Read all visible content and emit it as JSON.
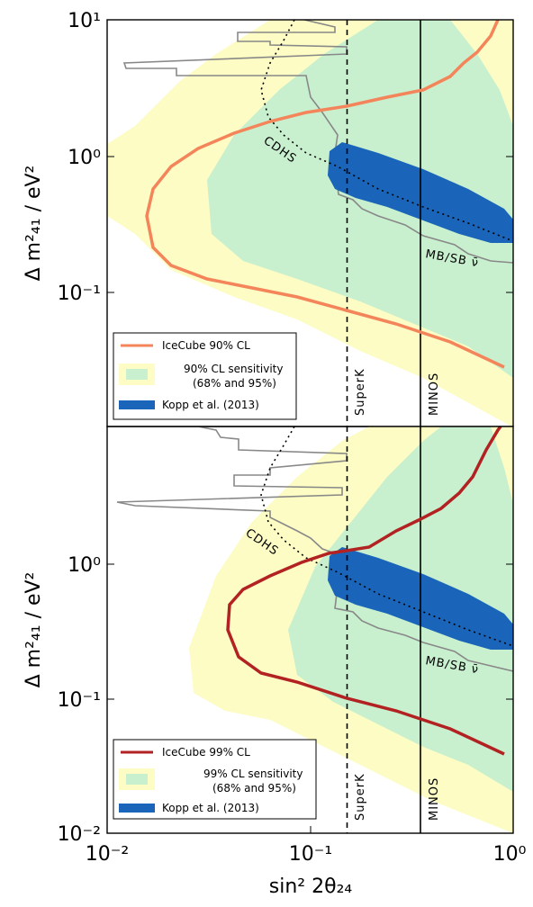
{
  "chart_data": [
    {
      "type": "line",
      "panel": "top",
      "xlabel": "sin² 2θ₂₄",
      "ylabel": "Δ m²₄₁ / eV²",
      "xscale": "log",
      "yscale": "log",
      "xlim": [
        0.01,
        1
      ],
      "ylim": [
        0.01,
        10
      ],
      "y_tick_labels": [
        "10⁻¹",
        "10⁰",
        "10¹"
      ],
      "legend": {
        "placement": "lower-left",
        "entries": [
          {
            "label": "IceCube 90% CL",
            "color": "#f4845a"
          },
          {
            "label": "90% CL sensitivity",
            "sub": "(68% and 95%)",
            "colors": [
              "#c8f0cf",
              "#fcfcc4"
            ]
          },
          {
            "label": "Kopp et al. (2013)",
            "color": "#1a65b9"
          }
        ]
      },
      "annotations": [
        "CDHS",
        "SuperK",
        "MINOS",
        "MB/SB ν̄"
      ],
      "series": [
        {
          "name": "IceCube 90% CL",
          "color": "#f4845a",
          "points": [
            [
              0.9,
              0.028
            ],
            [
              0.6,
              0.036
            ],
            [
              0.35,
              0.05
            ],
            [
              0.2,
              0.065
            ],
            [
              0.12,
              0.078
            ],
            [
              0.07,
              0.09
            ],
            [
              0.04,
              0.1
            ],
            [
              0.025,
              0.115
            ],
            [
              0.018,
              0.155
            ],
            [
              0.016,
              0.3
            ],
            [
              0.019,
              0.55
            ],
            [
              0.026,
              0.9
            ],
            [
              0.04,
              1.25
            ],
            [
              0.06,
              1.6
            ],
            [
              0.1,
              2.1
            ],
            [
              0.16,
              2.6
            ],
            [
              0.25,
              2.8
            ],
            [
              0.35,
              3.1
            ],
            [
              0.5,
              4.0
            ],
            [
              0.65,
              5.5
            ],
            [
              0.75,
              7.5
            ],
            [
              0.85,
              10
            ]
          ]
        },
        {
          "name": "Kopp et al. (2013)",
          "color": "#1a65b9",
          "points": [
            [
              0.14,
              1.0
            ],
            [
              0.2,
              0.75
            ],
            [
              0.3,
              0.55
            ],
            [
              0.45,
              0.42
            ],
            [
              0.65,
              0.33
            ],
            [
              0.95,
              0.27
            ]
          ]
        },
        {
          "name": "CDHS",
          "color": "#000000",
          "points": [
            [
              0.08,
              10
            ],
            [
              0.065,
              6
            ],
            [
              0.058,
              4
            ],
            [
              0.062,
              2.5
            ],
            [
              0.08,
              1.5
            ],
            [
              0.12,
              1.0
            ],
            [
              0.2,
              0.7
            ],
            [
              0.35,
              0.5
            ],
            [
              0.6,
              0.35
            ],
            [
              0.95,
              0.25
            ]
          ]
        },
        {
          "name": "MB/SB ν̄",
          "color": "#808080",
          "points": [
            [
              0.12,
              10
            ],
            [
              0.2,
              8.5
            ],
            [
              0.12,
              6.5
            ],
            [
              0.04,
              5.8
            ],
            [
              0.025,
              4.5
            ],
            [
              0.06,
              4.2
            ],
            [
              0.1,
              3.5
            ],
            [
              0.14,
              2.5
            ],
            [
              0.12,
              1.5
            ],
            [
              0.15,
              0.9
            ],
            [
              0.15,
              0.65
            ],
            [
              0.2,
              0.5
            ],
            [
              0.3,
              0.35
            ],
            [
              0.5,
              0.25
            ],
            [
              0.75,
              0.2
            ],
            [
              1.0,
              0.18
            ]
          ]
        }
      ],
      "vertical_lines": [
        {
          "name": "SuperK",
          "x": 0.15,
          "style": "dashed"
        },
        {
          "name": "MINOS",
          "x": 0.35,
          "style": "solid"
        }
      ]
    },
    {
      "type": "line",
      "panel": "bottom",
      "xlabel": "sin² 2θ₂₄",
      "ylabel": "Δ m²₄₁ / eV²",
      "xscale": "log",
      "yscale": "log",
      "xlim": [
        0.01,
        1
      ],
      "ylim": [
        0.01,
        10
      ],
      "x_tick_labels": [
        "10⁻²",
        "10⁻¹",
        "10⁰"
      ],
      "y_tick_labels": [
        "10⁻²",
        "10⁻¹",
        "10⁰"
      ],
      "legend": {
        "placement": "lower-left",
        "entries": [
          {
            "label": "IceCube 99% CL",
            "color": "#b22222"
          },
          {
            "label": "99% CL sensitivity",
            "sub": "(68% and 95%)",
            "colors": [
              "#c8f0cf",
              "#fcfcc4"
            ]
          },
          {
            "label": "Kopp et al. (2013)",
            "color": "#1a65b9"
          }
        ]
      },
      "annotations": [
        "CDHS",
        "SuperK",
        "MINOS",
        "MB/SB ν̄"
      ],
      "series": [
        {
          "name": "IceCube 99% CL",
          "color": "#b22222",
          "points": [
            [
              0.9,
              0.038
            ],
            [
              0.6,
              0.05
            ],
            [
              0.35,
              0.068
            ],
            [
              0.2,
              0.085
            ],
            [
              0.12,
              0.1
            ],
            [
              0.08,
              0.12
            ],
            [
              0.055,
              0.15
            ],
            [
              0.042,
              0.2
            ],
            [
              0.04,
              0.32
            ],
            [
              0.05,
              0.5
            ],
            [
              0.07,
              0.7
            ],
            [
              0.1,
              0.9
            ],
            [
              0.13,
              1.1
            ],
            [
              0.2,
              1.2
            ],
            [
              0.3,
              1.6
            ],
            [
              0.4,
              2.3
            ],
            [
              0.55,
              3.3
            ],
            [
              0.7,
              5
            ],
            [
              0.85,
              8
            ],
            [
              0.95,
              10
            ]
          ]
        },
        {
          "name": "Kopp et al. (2013)",
          "color": "#1a65b9",
          "points": [
            [
              0.14,
              1.0
            ],
            [
              0.2,
              0.75
            ],
            [
              0.3,
              0.55
            ],
            [
              0.45,
              0.42
            ],
            [
              0.65,
              0.33
            ],
            [
              0.95,
              0.27
            ]
          ]
        },
        {
          "name": "CDHS",
          "color": "#000000",
          "points": [
            [
              0.08,
              10
            ],
            [
              0.065,
              6
            ],
            [
              0.058,
              4
            ],
            [
              0.062,
              2.5
            ],
            [
              0.08,
              1.5
            ],
            [
              0.12,
              1.0
            ],
            [
              0.2,
              0.7
            ],
            [
              0.35,
              0.5
            ],
            [
              0.6,
              0.35
            ],
            [
              0.95,
              0.25
            ]
          ]
        },
        {
          "name": "MB/SB ν̄",
          "color": "#808080",
          "points": [
            [
              0.12,
              10
            ],
            [
              0.2,
              8.5
            ],
            [
              0.12,
              6.5
            ],
            [
              0.04,
              5.8
            ],
            [
              0.025,
              4.5
            ],
            [
              0.06,
              4.2
            ],
            [
              0.1,
              3.5
            ],
            [
              0.14,
              2.5
            ],
            [
              0.12,
              1.5
            ],
            [
              0.15,
              0.9
            ],
            [
              0.15,
              0.65
            ],
            [
              0.2,
              0.5
            ],
            [
              0.3,
              0.35
            ],
            [
              0.5,
              0.25
            ],
            [
              0.75,
              0.2
            ],
            [
              1.0,
              0.18
            ]
          ]
        }
      ],
      "vertical_lines": [
        {
          "name": "SuperK",
          "x": 0.15,
          "style": "dashed"
        },
        {
          "name": "MINOS",
          "x": 0.35,
          "style": "solid"
        }
      ]
    }
  ]
}
